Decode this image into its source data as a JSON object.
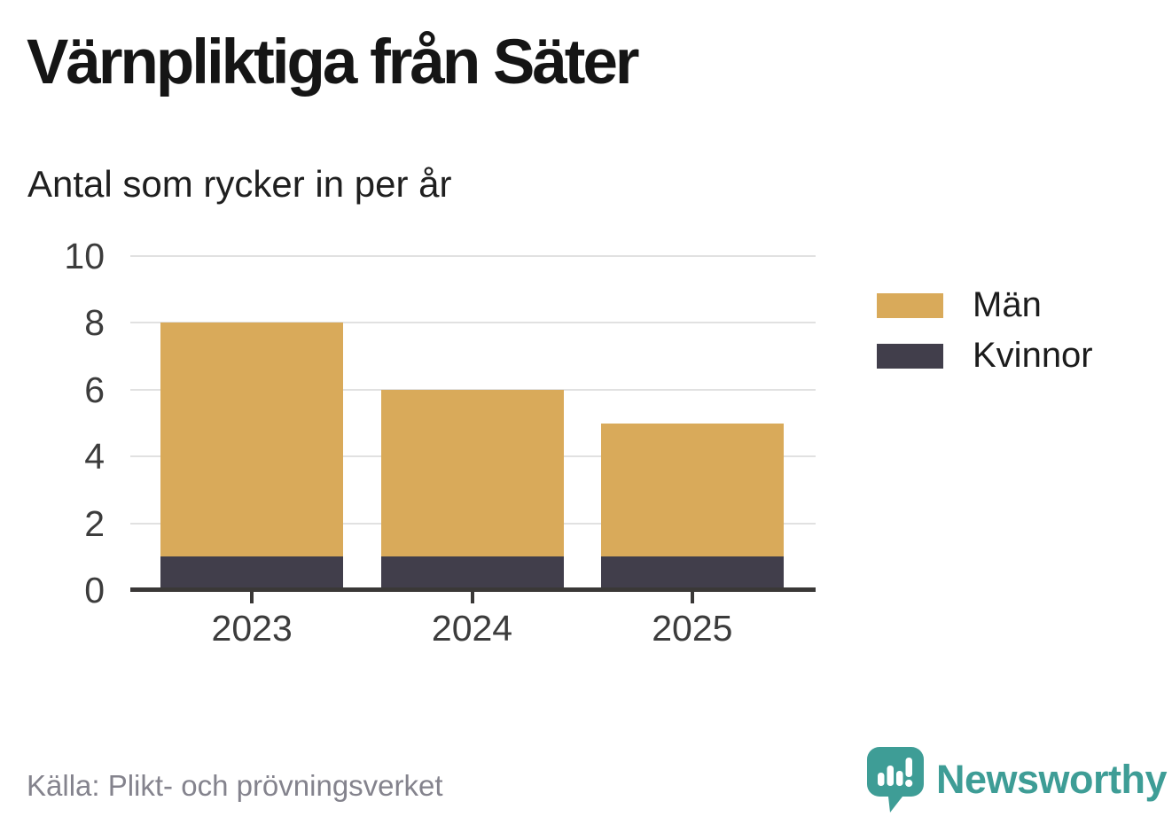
{
  "title": "Värnpliktiga från Säter",
  "subtitle": "Antal som rycker in per år",
  "source": "Källa: Plikt- och prövningsverket",
  "brand": {
    "name": "Newsworthy",
    "color": "#3e9d96",
    "logo_icon": "speech-bubble-bar-chart-icon"
  },
  "colors": {
    "men": "#d9aa5a",
    "women": "#413e4b",
    "gridline": "#e1e1e1",
    "axis": "#3a3837",
    "tick_text": "#3c3c3c",
    "source_text": "#84838d"
  },
  "legend": [
    {
      "label": "Män",
      "color": "#d9aa5a"
    },
    {
      "label": "Kvinnor",
      "color": "#413e4b"
    }
  ],
  "chart_data": {
    "type": "bar",
    "stacked": true,
    "title": "Värnpliktiga från Säter",
    "subtitle": "Antal som rycker in per år",
    "categories": [
      "2023",
      "2024",
      "2025"
    ],
    "series": [
      {
        "name": "Kvinnor",
        "color": "#413e4b",
        "values": [
          1,
          1,
          1
        ]
      },
      {
        "name": "Män",
        "color": "#d9aa5a",
        "values": [
          7,
          5,
          4
        ]
      }
    ],
    "stack_totals": [
      8,
      6,
      5
    ],
    "xlabel": "",
    "ylabel": "",
    "ylim": [
      0,
      10
    ],
    "yticks": [
      0,
      2,
      4,
      6,
      8,
      10
    ],
    "grid": "horizontal",
    "legend_position": "right"
  }
}
